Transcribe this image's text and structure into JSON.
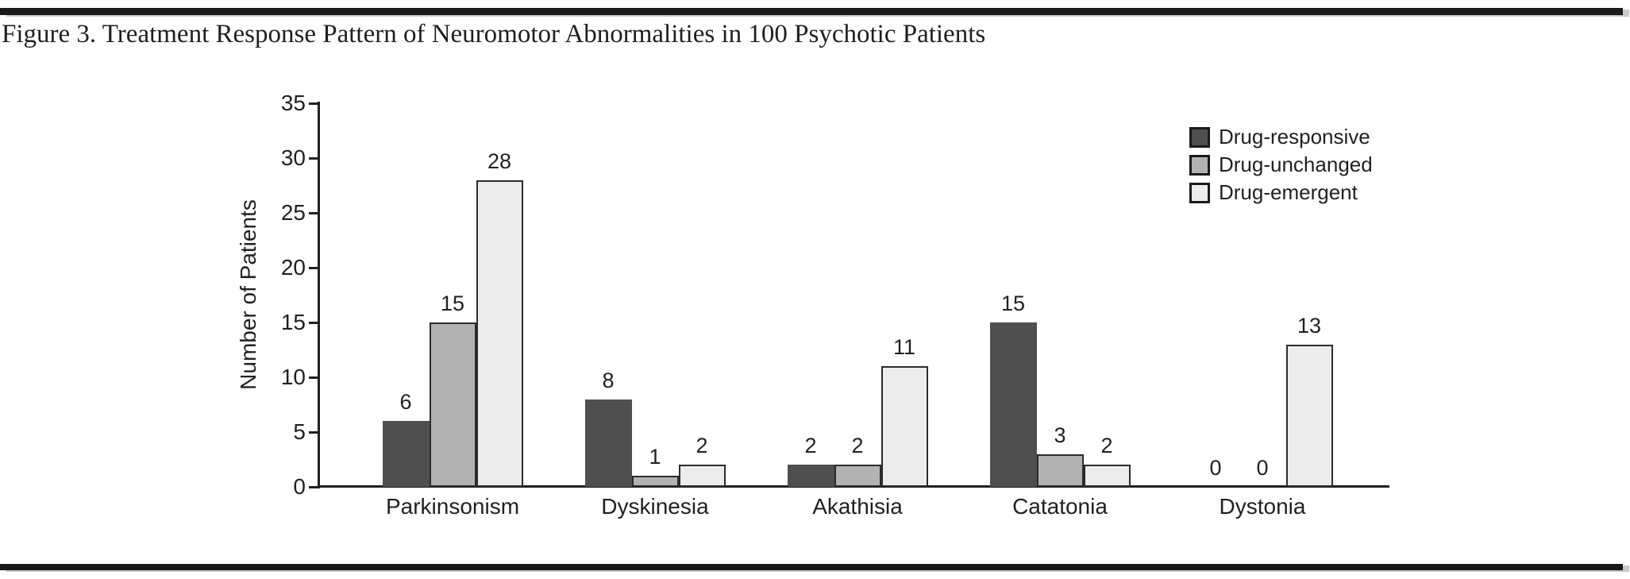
{
  "figure": {
    "title": "Figure 3. Treatment Response Pattern of Neuromotor Abnormalities in 100 Psychotic Patients"
  },
  "chart_data": {
    "type": "bar",
    "title": "Figure 3. Treatment Response Pattern of Neuromotor Abnormalities in 100 Psychotic Patients",
    "categories": [
      "Parkinsonism",
      "Dyskinesia",
      "Akathisia",
      "Catatonia",
      "Dystonia"
    ],
    "series": [
      {
        "name": "Drug-responsive",
        "color": "#4f4f4f",
        "values": [
          6,
          8,
          2,
          15,
          0
        ]
      },
      {
        "name": "Drug-unchanged",
        "color": "#b2b2b2",
        "values": [
          15,
          1,
          2,
          3,
          0
        ]
      },
      {
        "name": "Drug-emergent",
        "color": "#ececec",
        "values": [
          28,
          2,
          11,
          2,
          13
        ]
      }
    ],
    "xlabel": "",
    "ylabel": "Number of Patients",
    "ylim": [
      0,
      35
    ],
    "yticks": [
      0,
      5,
      10,
      15,
      20,
      25,
      30,
      35
    ],
    "bar_labels": true,
    "grid": false,
    "legend_position": "top-right",
    "colors": {
      "axis": "#231f20",
      "text": "#231f20",
      "rule": "#1a1a1a"
    }
  }
}
